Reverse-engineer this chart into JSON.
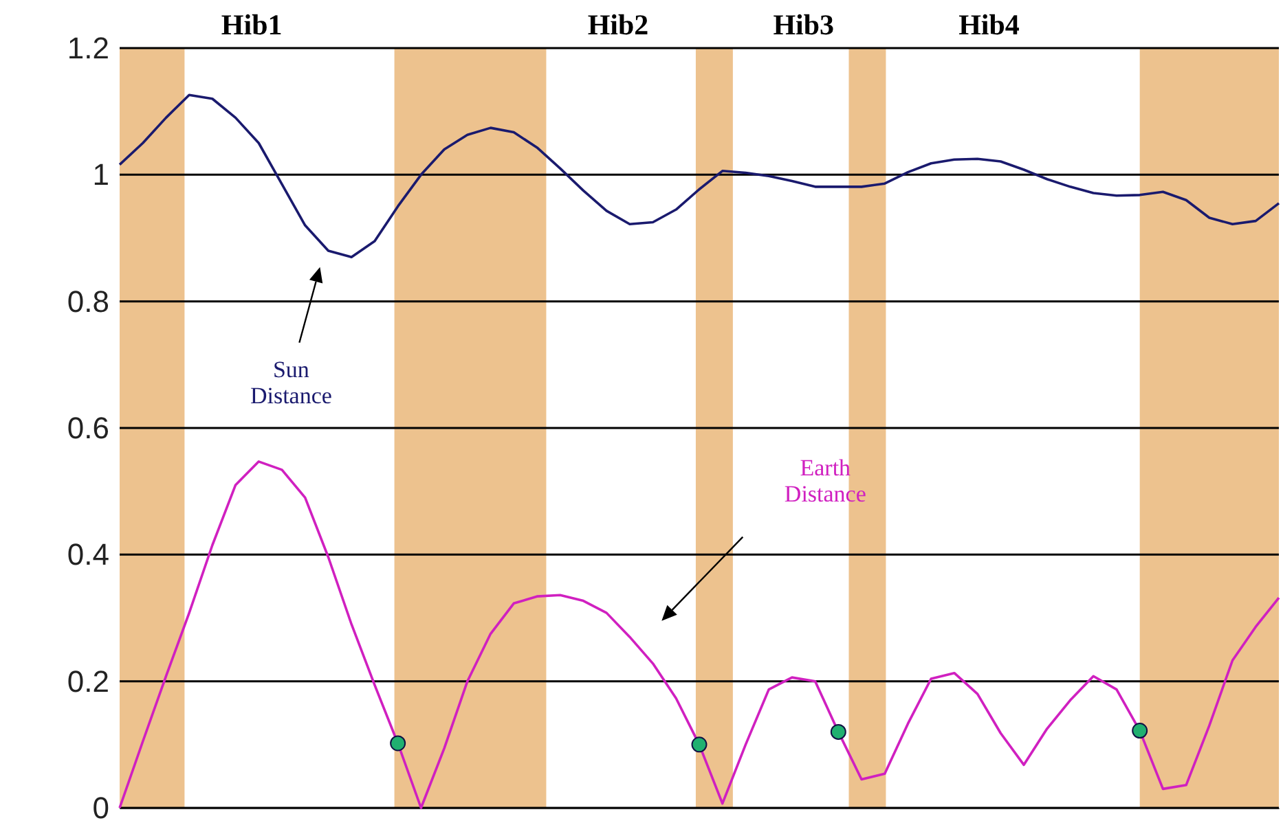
{
  "chart_data": {
    "type": "line",
    "categories": [
      null,
      null,
      null,
      null,
      null,
      null,
      null,
      null,
      null,
      null,
      null,
      null,
      null,
      null,
      null,
      null,
      null,
      null,
      null,
      null,
      null,
      null,
      null,
      null,
      null,
      null,
      null,
      null,
      null,
      null,
      null,
      null,
      null,
      null,
      null,
      null,
      null,
      null,
      null,
      null,
      null,
      null,
      null,
      null,
      null,
      null,
      null,
      null,
      null,
      null,
      null
    ],
    "ylim": [
      0,
      1.2
    ],
    "yticks": [
      0,
      0.2,
      0.4,
      0.6,
      0.8,
      1,
      1.2
    ],
    "tick_labels": "y",
    "grid": "y",
    "marker": "none",
    "line_style": "solid",
    "series": [
      {
        "name": "Sun Distance",
        "color": "#1a1a6e",
        "values": [
          1.016,
          1.05,
          1.09,
          1.126,
          1.12,
          1.09,
          1.05,
          0.985,
          0.92,
          0.88,
          0.87,
          0.895,
          0.95,
          1.0,
          1.04,
          1.063,
          1.074,
          1.067,
          1.043,
          1.01,
          0.975,
          0.943,
          0.922,
          0.925,
          0.945,
          0.977,
          1.006,
          1.003,
          0.998,
          0.99,
          0.981,
          0.981,
          0.981,
          0.986,
          1.004,
          1.018,
          1.024,
          1.025,
          1.021,
          1.008,
          0.993,
          0.981,
          0.971,
          0.967,
          0.968,
          0.973,
          0.96,
          0.932,
          0.922,
          0.927,
          0.955
        ]
      },
      {
        "name": "Earth Distance",
        "color": "#d020c0",
        "values": [
          0,
          0.105,
          0.208,
          0.308,
          0.415,
          0.51,
          0.547,
          0.534,
          0.49,
          0.396,
          0.29,
          0.194,
          0.102,
          0,
          0.094,
          0.2,
          0.275,
          0.323,
          0.334,
          0.336,
          0.327,
          0.308,
          0.27,
          0.228,
          0.173,
          0.1,
          0.007,
          0.1,
          0.187,
          0.206,
          0.2,
          0.12,
          0.045,
          0.054,
          0.133,
          0.204,
          0.213,
          0.18,
          0.118,
          0.068,
          0.125,
          0.17,
          0.208,
          0.187,
          0.122,
          0.03,
          0.036,
          0.13,
          0.233,
          0.286,
          0.332
        ]
      },
      {
        "type": "scatter",
        "color": "#20b070",
        "marker": "circle",
        "values": [
          null,
          null,
          null,
          null,
          null,
          null,
          null,
          null,
          null,
          null,
          null,
          null,
          0.102,
          null,
          null,
          null,
          null,
          null,
          null,
          null,
          null,
          null,
          null,
          null,
          null,
          0.1,
          null,
          null,
          null,
          null,
          null,
          0.12,
          null,
          null,
          null,
          null,
          null,
          null,
          null,
          null,
          null,
          null,
          null,
          null,
          0.122,
          null,
          null,
          null,
          null,
          null,
          null
        ]
      }
    ],
    "annotations": [
      "Hib1",
      "Hib2",
      "Hib3",
      "Hib4"
    ]
  }
}
